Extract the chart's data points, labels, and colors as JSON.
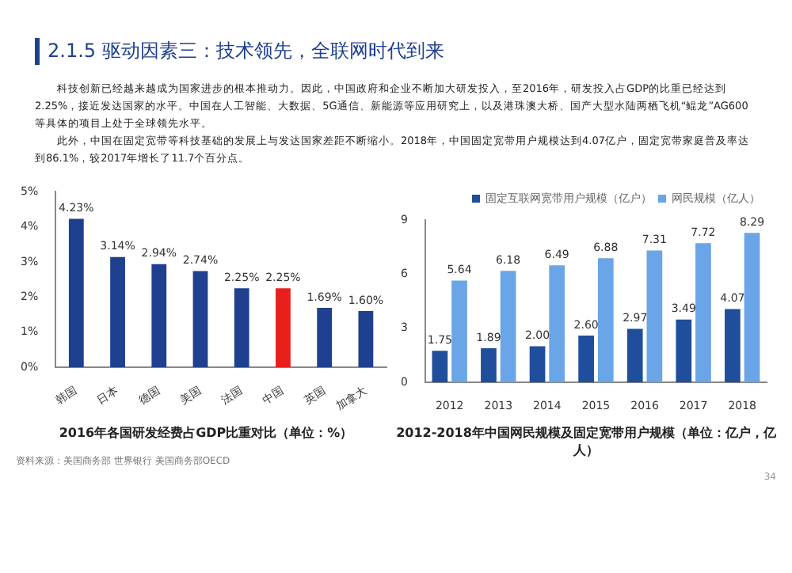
{
  "chart_data": [
    {
      "type": "bar",
      "title": "2016年各国研发经费占GDP比重对比（单位：%）",
      "annotations": [
        "2.1.5 驱动因素三：技术领先，全联网时代到来",
        "科技创新已经越来越成为国家进步的根本推动力。因此，中国政府和企业不断加大研发投入，至2016年，研发投入占GDP的比重已经达到2.25%，接近发达国家的水平。中国在人工智能、大数据、5G通信、新能源等应用研究上，以及港珠澳大桥、国产大型水陆两栖飞机“鲲龙”AG600等具体的项目上处于全球领先水平。",
        "此外，中国在固定宽带等科技基础的发展上与发达国家差距不断缩小。2018年，中国固定宽带用户规模达到4.07亿户，固定宽带家庭普及率达到86.1%，较2017年增长了11.7个百分点。",
        "资料来源：美国商务部 世界银行 美国商务部OECD"
      ],
      "categories": [
        "韩国",
        "日本",
        "德国",
        "美国",
        "法国",
        "中国",
        "英国",
        "加拿大"
      ],
      "values": [
        4.23,
        3.14,
        2.94,
        2.74,
        2.25,
        2.25,
        1.69,
        1.6
      ],
      "colors": [
        "#1f3f8f",
        "#1f3f8f",
        "#1f3f8f",
        "#1f3f8f",
        "#1f3f8f",
        "#e8201c",
        "#1f3f8f",
        "#1f3f8f"
      ],
      "value_labels": [
        "4.23%",
        "3.14%",
        "2.94%",
        "2.74%",
        "2.25%",
        "2.25%",
        "1.69%",
        "1.60%"
      ],
      "ylim": [
        0,
        5
      ],
      "yticks": [
        {
          "value": 0,
          "label": "0%"
        },
        {
          "value": 1,
          "label": "1%"
        },
        {
          "value": 2,
          "label": "2%"
        },
        {
          "value": 3,
          "label": "3%"
        },
        {
          "value": 4,
          "label": "4%"
        },
        {
          "value": 5,
          "label": "5%"
        }
      ],
      "grid": false,
      "legend": false
    },
    {
      "type": "bar",
      "title": "2012-2018年中国网民规模及固定宽带用户规模（单位：亿户，亿人）",
      "annotations": [
        "34"
      ],
      "categories": [
        "2012",
        "2013",
        "2014",
        "2015",
        "2016",
        "2017",
        "2018"
      ],
      "series": [
        {
          "name": "固定互联网宽带用户规模（亿户）",
          "color": "#1f4e9c",
          "values": [
            1.75,
            1.89,
            2.0,
            2.6,
            2.97,
            3.49,
            4.07
          ],
          "value_labels": [
            "1.75",
            "1.89",
            "2.00",
            "2.60",
            "2.97",
            "3.49",
            "4.07"
          ]
        },
        {
          "name": "网民规模（亿人）",
          "color": "#6aa5e8",
          "values": [
            5.64,
            6.18,
            6.49,
            6.88,
            7.31,
            7.72,
            8.29
          ],
          "value_labels": [
            "5.64",
            "6.18",
            "6.49",
            "6.88",
            "7.31",
            "7.72",
            "8.29"
          ]
        }
      ],
      "ylim": [
        0,
        9
      ],
      "yticks": [
        0,
        3,
        6,
        9
      ],
      "grid": false,
      "legend": "top right"
    }
  ]
}
